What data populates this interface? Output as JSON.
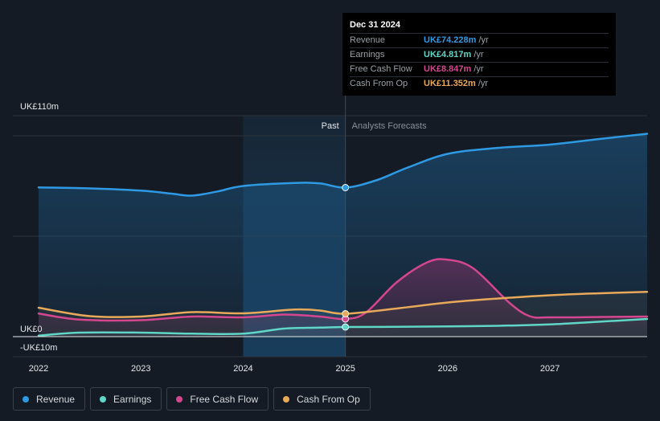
{
  "chart_data": {
    "type": "line",
    "y_axis": {
      "top_label": "UK£110m",
      "zero_label": "UK£0",
      "bottom_label": "-UK£10m",
      "ylim": [
        -10,
        110
      ]
    },
    "x_ticks": [
      "2022",
      "2023",
      "2024",
      "2025",
      "2026",
      "2027"
    ],
    "xlim": [
      2021.75,
      2027.95
    ],
    "divider_x": 2025.0,
    "highlight_band": [
      2024.0,
      2025.0
    ],
    "past_label": "Past",
    "forecast_label": "Analysts Forecasts",
    "series": [
      {
        "name": "Revenue",
        "key": "revenue",
        "color": "#2f9ae4",
        "values": [
          [
            2022.0,
            74.3
          ],
          [
            2022.5,
            73.8
          ],
          [
            2023.0,
            72.7
          ],
          [
            2023.3,
            71.2
          ],
          [
            2023.5,
            70.2
          ],
          [
            2023.75,
            72.3
          ],
          [
            2024.0,
            75.0
          ],
          [
            2024.5,
            76.5
          ],
          [
            2024.75,
            76.3
          ],
          [
            2025.0,
            74.2
          ],
          [
            2025.3,
            77.8
          ],
          [
            2025.6,
            84.0
          ],
          [
            2026.0,
            91.0
          ],
          [
            2026.5,
            94.0
          ],
          [
            2027.0,
            95.6
          ],
          [
            2027.5,
            98.5
          ],
          [
            2027.95,
            101.0
          ]
        ]
      },
      {
        "name": "Earnings",
        "key": "earnings",
        "color": "#5fd6c6",
        "values": [
          [
            2022.0,
            0.5
          ],
          [
            2022.4,
            2.0
          ],
          [
            2023.0,
            2.0
          ],
          [
            2023.5,
            1.5
          ],
          [
            2024.0,
            1.5
          ],
          [
            2024.4,
            4.0
          ],
          [
            2024.75,
            4.5
          ],
          [
            2025.0,
            4.8
          ],
          [
            2025.5,
            4.9
          ],
          [
            2026.0,
            5.1
          ],
          [
            2026.5,
            5.4
          ],
          [
            2027.0,
            6.1
          ],
          [
            2027.5,
            7.5
          ],
          [
            2027.95,
            8.8
          ]
        ]
      },
      {
        "name": "Free Cash Flow",
        "key": "fcf",
        "color": "#d4478f",
        "values": [
          [
            2022.0,
            11.5
          ],
          [
            2022.4,
            8.5
          ],
          [
            2023.0,
            8.2
          ],
          [
            2023.5,
            10.0
          ],
          [
            2024.0,
            9.6
          ],
          [
            2024.4,
            11.0
          ],
          [
            2024.75,
            10.0
          ],
          [
            2025.0,
            8.8
          ],
          [
            2025.2,
            12.0
          ],
          [
            2025.5,
            27.0
          ],
          [
            2025.8,
            37.0
          ],
          [
            2026.0,
            38.3
          ],
          [
            2026.25,
            34.0
          ],
          [
            2026.6,
            17.0
          ],
          [
            2026.8,
            10.2
          ],
          [
            2027.0,
            9.6
          ],
          [
            2027.5,
            9.8
          ],
          [
            2027.95,
            10.0
          ]
        ]
      },
      {
        "name": "Cash From Op",
        "key": "cfo",
        "color": "#e8a95a",
        "values": [
          [
            2022.0,
            14.4
          ],
          [
            2022.5,
            10.2
          ],
          [
            2023.0,
            10.0
          ],
          [
            2023.5,
            12.2
          ],
          [
            2024.0,
            11.6
          ],
          [
            2024.5,
            13.5
          ],
          [
            2024.75,
            13.0
          ],
          [
            2025.0,
            11.4
          ],
          [
            2025.5,
            14.0
          ],
          [
            2026.0,
            17.0
          ],
          [
            2026.5,
            19.0
          ],
          [
            2027.0,
            20.6
          ],
          [
            2027.5,
            21.6
          ],
          [
            2027.95,
            22.3
          ]
        ]
      }
    ]
  },
  "tooltip": {
    "date": "Dec 31 2024",
    "rows": [
      {
        "label": "Revenue",
        "value": "UK£74.228m",
        "unit": "/yr",
        "color": "#2f9ae4"
      },
      {
        "label": "Earnings",
        "value": "UK£4.817m",
        "unit": "/yr",
        "color": "#5fd6c6"
      },
      {
        "label": "Free Cash Flow",
        "value": "UK£8.847m",
        "unit": "/yr",
        "color": "#d4478f"
      },
      {
        "label": "Cash From Op",
        "value": "UK£11.352m",
        "unit": "/yr",
        "color": "#e8a95a"
      }
    ]
  },
  "legend": [
    {
      "label": "Revenue",
      "color": "#2f9ae4"
    },
    {
      "label": "Earnings",
      "color": "#5fd6c6"
    },
    {
      "label": "Free Cash Flow",
      "color": "#d4478f"
    },
    {
      "label": "Cash From Op",
      "color": "#e8a95a"
    }
  ]
}
